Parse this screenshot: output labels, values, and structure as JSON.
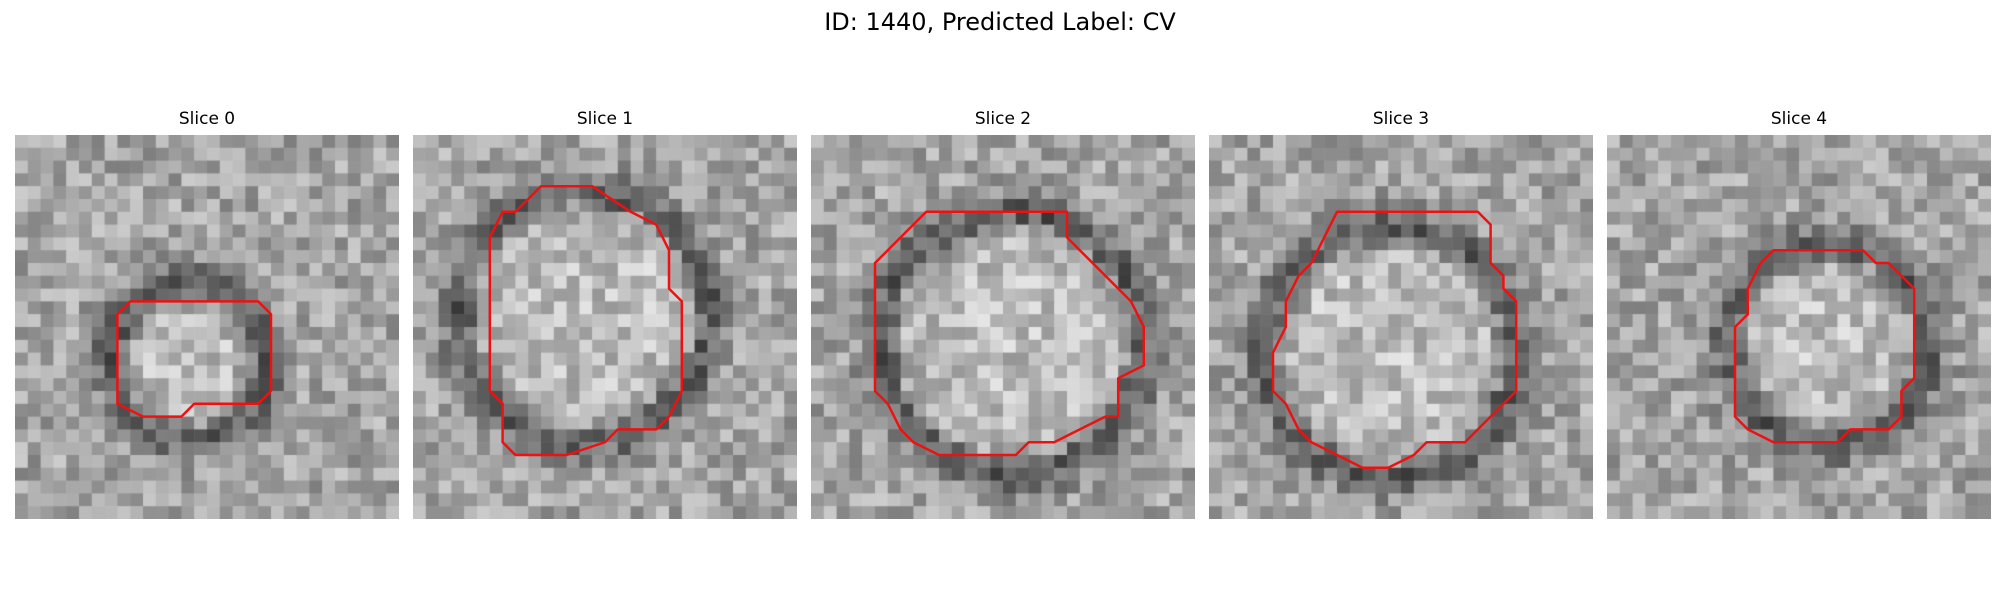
{
  "figure": {
    "title": "ID: 1440, Predicted Label: CV",
    "contour_color": "#ee1111"
  },
  "panels": [
    {
      "title": "Slice 0",
      "contour": [
        [
          10,
          13
        ],
        [
          19,
          13
        ],
        [
          20,
          14
        ],
        [
          20,
          20
        ],
        [
          19,
          21
        ],
        [
          14,
          21
        ],
        [
          13,
          22
        ],
        [
          10,
          22
        ],
        [
          8,
          21
        ],
        [
          8,
          14
        ],
        [
          9,
          13
        ]
      ]
    },
    {
      "title": "Slice 1",
      "contour": [
        [
          11,
          4
        ],
        [
          14,
          4
        ],
        [
          17,
          6
        ],
        [
          19,
          7
        ],
        [
          20,
          9
        ],
        [
          20,
          12
        ],
        [
          21,
          13
        ],
        [
          21,
          20
        ],
        [
          20,
          22
        ],
        [
          19,
          23
        ],
        [
          16,
          23
        ],
        [
          15,
          24
        ],
        [
          12,
          25
        ],
        [
          8,
          25
        ],
        [
          7,
          24
        ],
        [
          7,
          21
        ],
        [
          6,
          20
        ],
        [
          6,
          8
        ],
        [
          7,
          6
        ],
        [
          8,
          6
        ],
        [
          9,
          5
        ],
        [
          10,
          4
        ]
      ]
    },
    {
      "title": "Slice 2",
      "contour": [
        [
          10,
          6
        ],
        [
          20,
          6
        ],
        [
          20,
          8
        ],
        [
          21,
          9
        ],
        [
          22,
          10
        ],
        [
          25,
          13
        ],
        [
          26,
          15
        ],
        [
          26,
          18
        ],
        [
          24,
          19
        ],
        [
          24,
          22
        ],
        [
          23,
          22
        ],
        [
          21,
          23
        ],
        [
          19,
          24
        ],
        [
          17,
          24
        ],
        [
          16,
          25
        ],
        [
          10,
          25
        ],
        [
          8,
          24
        ],
        [
          7,
          23
        ],
        [
          6,
          21
        ],
        [
          5,
          20
        ],
        [
          5,
          10
        ],
        [
          6,
          9
        ],
        [
          7,
          8
        ],
        [
          9,
          6
        ]
      ]
    },
    {
      "title": "Slice 3",
      "contour": [
        [
          10,
          6
        ],
        [
          21,
          6
        ],
        [
          22,
          7
        ],
        [
          22,
          10
        ],
        [
          23,
          11
        ],
        [
          23,
          12
        ],
        [
          24,
          13
        ],
        [
          24,
          20
        ],
        [
          22,
          22
        ],
        [
          21,
          23
        ],
        [
          20,
          24
        ],
        [
          17,
          24
        ],
        [
          16,
          25
        ],
        [
          14,
          26
        ],
        [
          12,
          26
        ],
        [
          10,
          25
        ],
        [
          8,
          24
        ],
        [
          7,
          23
        ],
        [
          6,
          21
        ],
        [
          5,
          20
        ],
        [
          5,
          17
        ],
        [
          6,
          15
        ],
        [
          6,
          13
        ],
        [
          7,
          11
        ],
        [
          8,
          10
        ],
        [
          9,
          8
        ]
      ]
    },
    {
      "title": "Slice 4",
      "contour": [
        [
          13,
          9
        ],
        [
          20,
          9
        ],
        [
          21,
          10
        ],
        [
          22,
          10
        ],
        [
          23,
          11
        ],
        [
          24,
          12
        ],
        [
          24,
          19
        ],
        [
          23,
          20
        ],
        [
          23,
          22
        ],
        [
          22,
          23
        ],
        [
          19,
          23
        ],
        [
          18,
          24
        ],
        [
          13,
          24
        ],
        [
          11,
          23
        ],
        [
          10,
          22
        ],
        [
          10,
          15
        ],
        [
          11,
          14
        ],
        [
          11,
          12
        ],
        [
          12,
          10
        ]
      ]
    }
  ]
}
